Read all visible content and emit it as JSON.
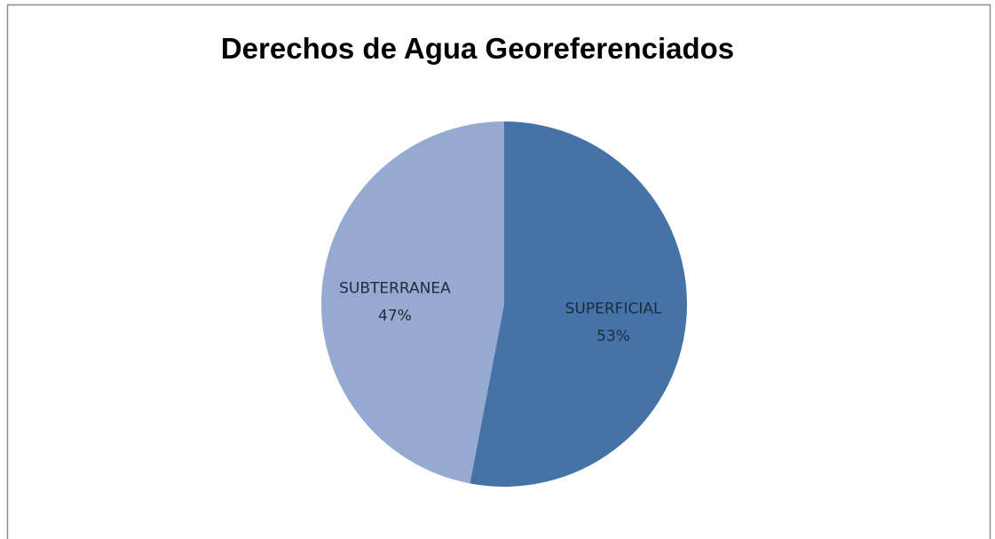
{
  "chart_data": {
    "type": "pie",
    "title": "Derechos de Agua Georeferenciados",
    "categories": [
      "SUPERFICIAL",
      "SUBTERRANEA"
    ],
    "values": [
      53,
      47
    ],
    "value_labels": [
      "53%",
      "47%"
    ],
    "colors": [
      "#4573a7",
      "#95a9d1"
    ]
  }
}
